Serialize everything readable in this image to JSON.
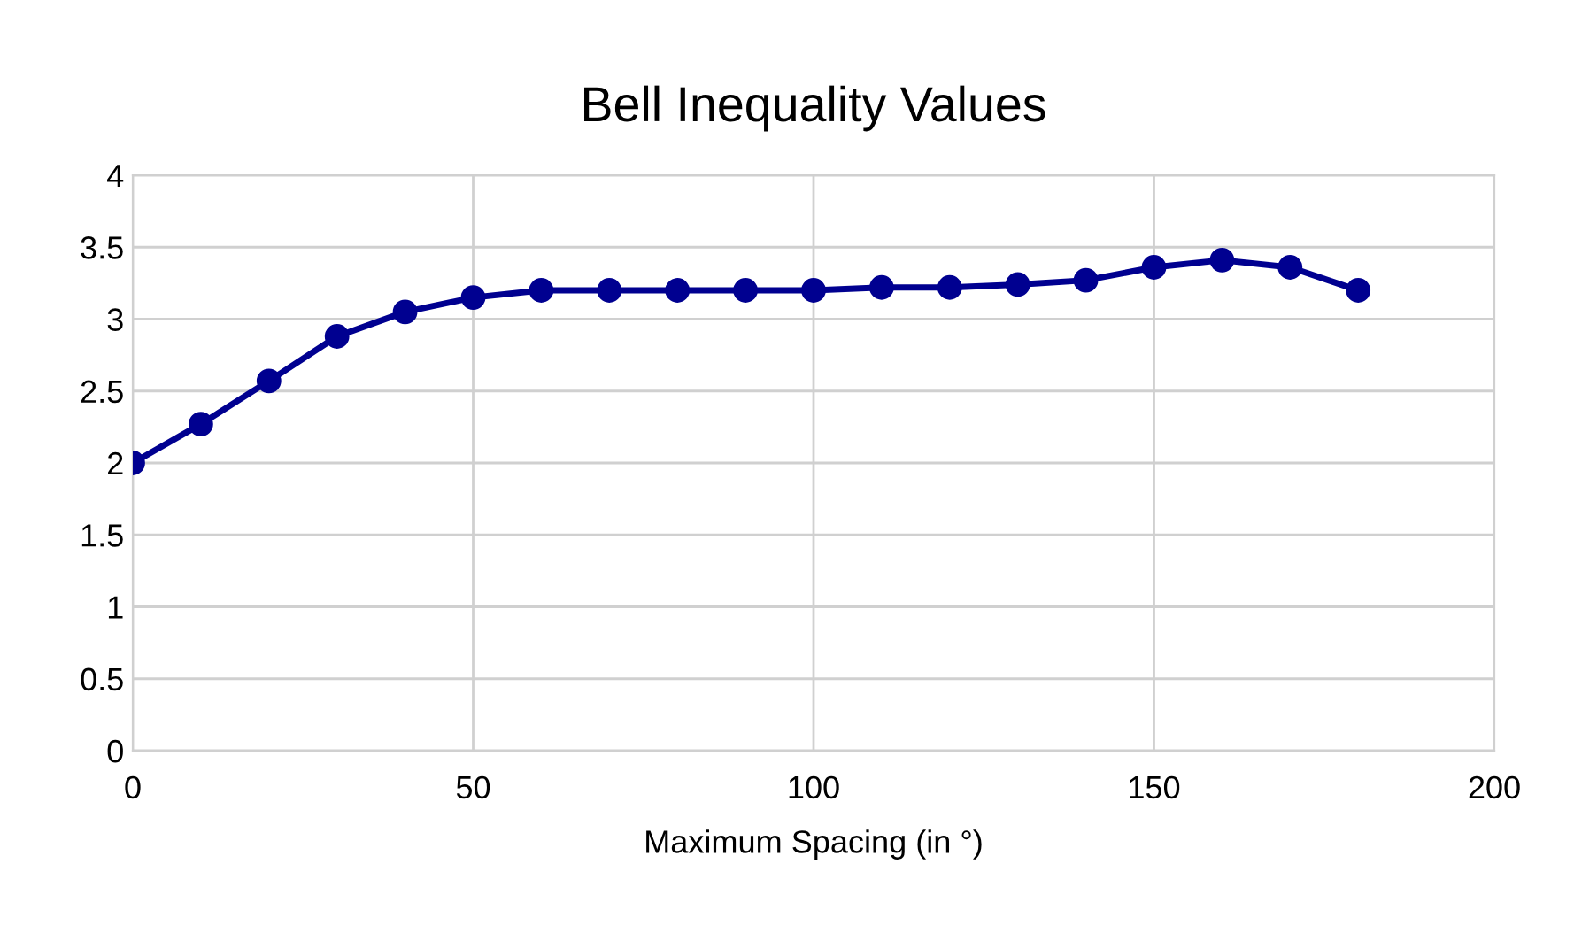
{
  "chart_data": {
    "type": "line",
    "title": "Bell Inequality Values",
    "xlabel": "Maximum Spacing (in °)",
    "x": [
      0,
      10,
      20,
      30,
      40,
      50,
      60,
      70,
      80,
      90,
      100,
      110,
      120,
      130,
      140,
      150,
      160,
      170,
      180
    ],
    "series": [
      {
        "color": "#000090",
        "values": [
          2.0,
          2.27,
          2.57,
          2.88,
          3.05,
          3.15,
          3.2,
          3.2,
          3.2,
          3.2,
          3.2,
          3.22,
          3.22,
          3.24,
          3.27,
          3.36,
          3.41,
          3.36,
          3.2
        ]
      }
    ],
    "xlim": [
      0,
      200
    ],
    "xticks": [
      0,
      50,
      100,
      150,
      200
    ],
    "ylim": [
      0,
      4
    ],
    "yticks": [
      0,
      0.5,
      1,
      1.5,
      2,
      2.5,
      3,
      3.5,
      4
    ],
    "grid": true,
    "marker": "circle",
    "line_style": "solid"
  }
}
